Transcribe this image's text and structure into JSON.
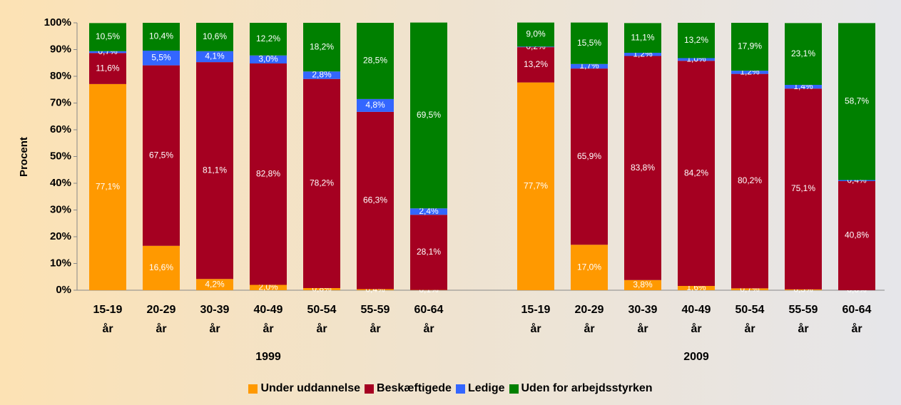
{
  "chart_data": {
    "type": "stacked-bar",
    "y_label": "Procent",
    "categories": [
      "15-19 år",
      "20-29 år",
      "30-39 år",
      "40-49 år",
      "50-54 år",
      "55-59 år",
      "60-64 år",
      null,
      "15-19 år",
      "20-29 år",
      "30-39 år",
      "40-49 år",
      "50-54 år",
      "55-59 år",
      "60-64 år"
    ],
    "groups": [
      "1999",
      "2009"
    ],
    "ylim": [
      0,
      100
    ],
    "yticks": [
      {
        "value": 0,
        "label": "0%"
      },
      {
        "value": 10,
        "label": "10%"
      },
      {
        "value": 20,
        "label": "20%"
      },
      {
        "value": 30,
        "label": "30%"
      },
      {
        "value": 40,
        "label": "40%"
      },
      {
        "value": 50,
        "label": "50%"
      },
      {
        "value": 60,
        "label": "60%"
      },
      {
        "value": 70,
        "label": "70%"
      },
      {
        "value": 80,
        "label": "80%"
      },
      {
        "value": 90,
        "label": "90%"
      },
      {
        "value": 100,
        "label": "100%"
      }
    ],
    "legend": "bottom",
    "series": [
      {
        "name": "Under uddannelse",
        "color": "#ff9900",
        "values": [
          77.1,
          16.6,
          4.2,
          2.0,
          0.8,
          0.4,
          0.1,
          null,
          77.7,
          17.0,
          3.8,
          1.6,
          0.7,
          0.3,
          0.0
        ],
        "value_labels": [
          "77,1%",
          "16,6%",
          "4,2%",
          "2,0%",
          "0,8%",
          "0,4%",
          "0,1%",
          null,
          "77,7%",
          "17,0%",
          "3,8%",
          "1,6%",
          "0,7%",
          "0,3%",
          "0,0%"
        ]
      },
      {
        "name": "Beskæftigede",
        "color": "#a50021",
        "values": [
          11.6,
          67.5,
          81.1,
          82.8,
          78.2,
          66.3,
          28.1,
          null,
          13.2,
          65.9,
          83.8,
          84.2,
          80.2,
          75.1,
          40.8
        ],
        "value_labels": [
          "11,6%",
          "67,5%",
          "81,1%",
          "82,8%",
          "78,2%",
          "66,3%",
          "28,1%",
          null,
          "13,2%",
          "65,9%",
          "83,8%",
          "84,2%",
          "80,2%",
          "75,1%",
          "40,8%"
        ]
      },
      {
        "name": "Ledige",
        "color": "#3366ff",
        "values": [
          0.7,
          5.5,
          4.1,
          3.0,
          2.8,
          4.8,
          2.4,
          null,
          0.2,
          1.7,
          1.2,
          1.0,
          1.2,
          1.4,
          0.4
        ],
        "value_labels": [
          "0,7%",
          "5,5%",
          "4,1%",
          "3,0%",
          "2,8%",
          "4,8%",
          "2,4%",
          null,
          "0,2%",
          "1,7%",
          "1,2%",
          "1,0%",
          "1,2%",
          "1,4%",
          "0,4%"
        ]
      },
      {
        "name": "Uden for arbejdsstyrken",
        "color": "#008000",
        "values": [
          10.5,
          10.4,
          10.6,
          12.2,
          18.2,
          28.5,
          69.5,
          null,
          9.0,
          15.5,
          11.1,
          13.2,
          17.9,
          23.1,
          58.7
        ],
        "value_labels": [
          "10,5%",
          "10,4%",
          "10,6%",
          "12,2%",
          "18,2%",
          "28,5%",
          "69,5%",
          null,
          "9,0%",
          "15,5%",
          "11,1%",
          "13,2%",
          "17,9%",
          "23,1%",
          "58,7%"
        ]
      }
    ]
  }
}
